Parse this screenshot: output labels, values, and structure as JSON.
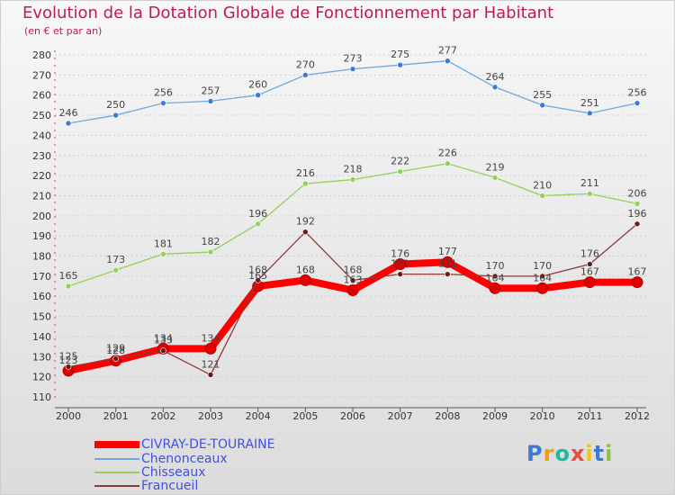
{
  "title": "Evolution de la Dotation Globale de Fonctionnement par Habitant",
  "subtitle": "(en € et par an)",
  "logo_text": "Proxiti",
  "chart_data": {
    "type": "line",
    "x": [
      "2000",
      "2001",
      "2002",
      "2003",
      "2004",
      "2005",
      "2006",
      "2007",
      "2008",
      "2009",
      "2010",
      "2011",
      "2012"
    ],
    "ylim": [
      110,
      280
    ],
    "yticks": [
      110,
      120,
      130,
      140,
      150,
      160,
      170,
      180,
      190,
      200,
      210,
      220,
      230,
      240,
      250,
      260,
      270,
      280
    ],
    "grid": "horizontal dashed",
    "legend": "bottom-left",
    "series": [
      {
        "name": "CIVRAY-DE-TOURAINE",
        "color": "#ff0000",
        "values": [
          123,
          128,
          134,
          134,
          165,
          168,
          163,
          176,
          177,
          164,
          164,
          167,
          167
        ],
        "labels": [
          "123",
          "128",
          "134",
          "134",
          "165",
          "168",
          "163",
          "176",
          "177",
          "164",
          "164",
          "167",
          "167"
        ]
      },
      {
        "name": "Chenonceaux",
        "color": "#6fa8dc",
        "values": [
          246,
          250,
          256,
          257,
          260,
          270,
          273,
          275,
          277,
          264,
          255,
          251,
          256
        ],
        "labels": [
          "246",
          "250",
          "256",
          "257",
          "260",
          "270",
          "273",
          "275",
          "277",
          "264",
          "255",
          "251",
          "256"
        ]
      },
      {
        "name": "Chisseaux",
        "color": "#8fd15a",
        "values": [
          165,
          173,
          181,
          182,
          196,
          216,
          218,
          222,
          226,
          219,
          210,
          211,
          206
        ],
        "labels": [
          "165",
          "173",
          "181",
          "182",
          "196",
          "216",
          "218",
          "222",
          "226",
          "219",
          "210",
          "211",
          "206"
        ]
      },
      {
        "name": "Francueil",
        "color": "#8b3a3a",
        "values": [
          125,
          129,
          133,
          121,
          168,
          192,
          168,
          171,
          171,
          170,
          170,
          176,
          196
        ],
        "labels": [
          "125",
          "129",
          "133",
          "121",
          "168",
          "192",
          "168",
          "171",
          "171",
          "170",
          "170",
          "176",
          "196"
        ]
      }
    ]
  }
}
